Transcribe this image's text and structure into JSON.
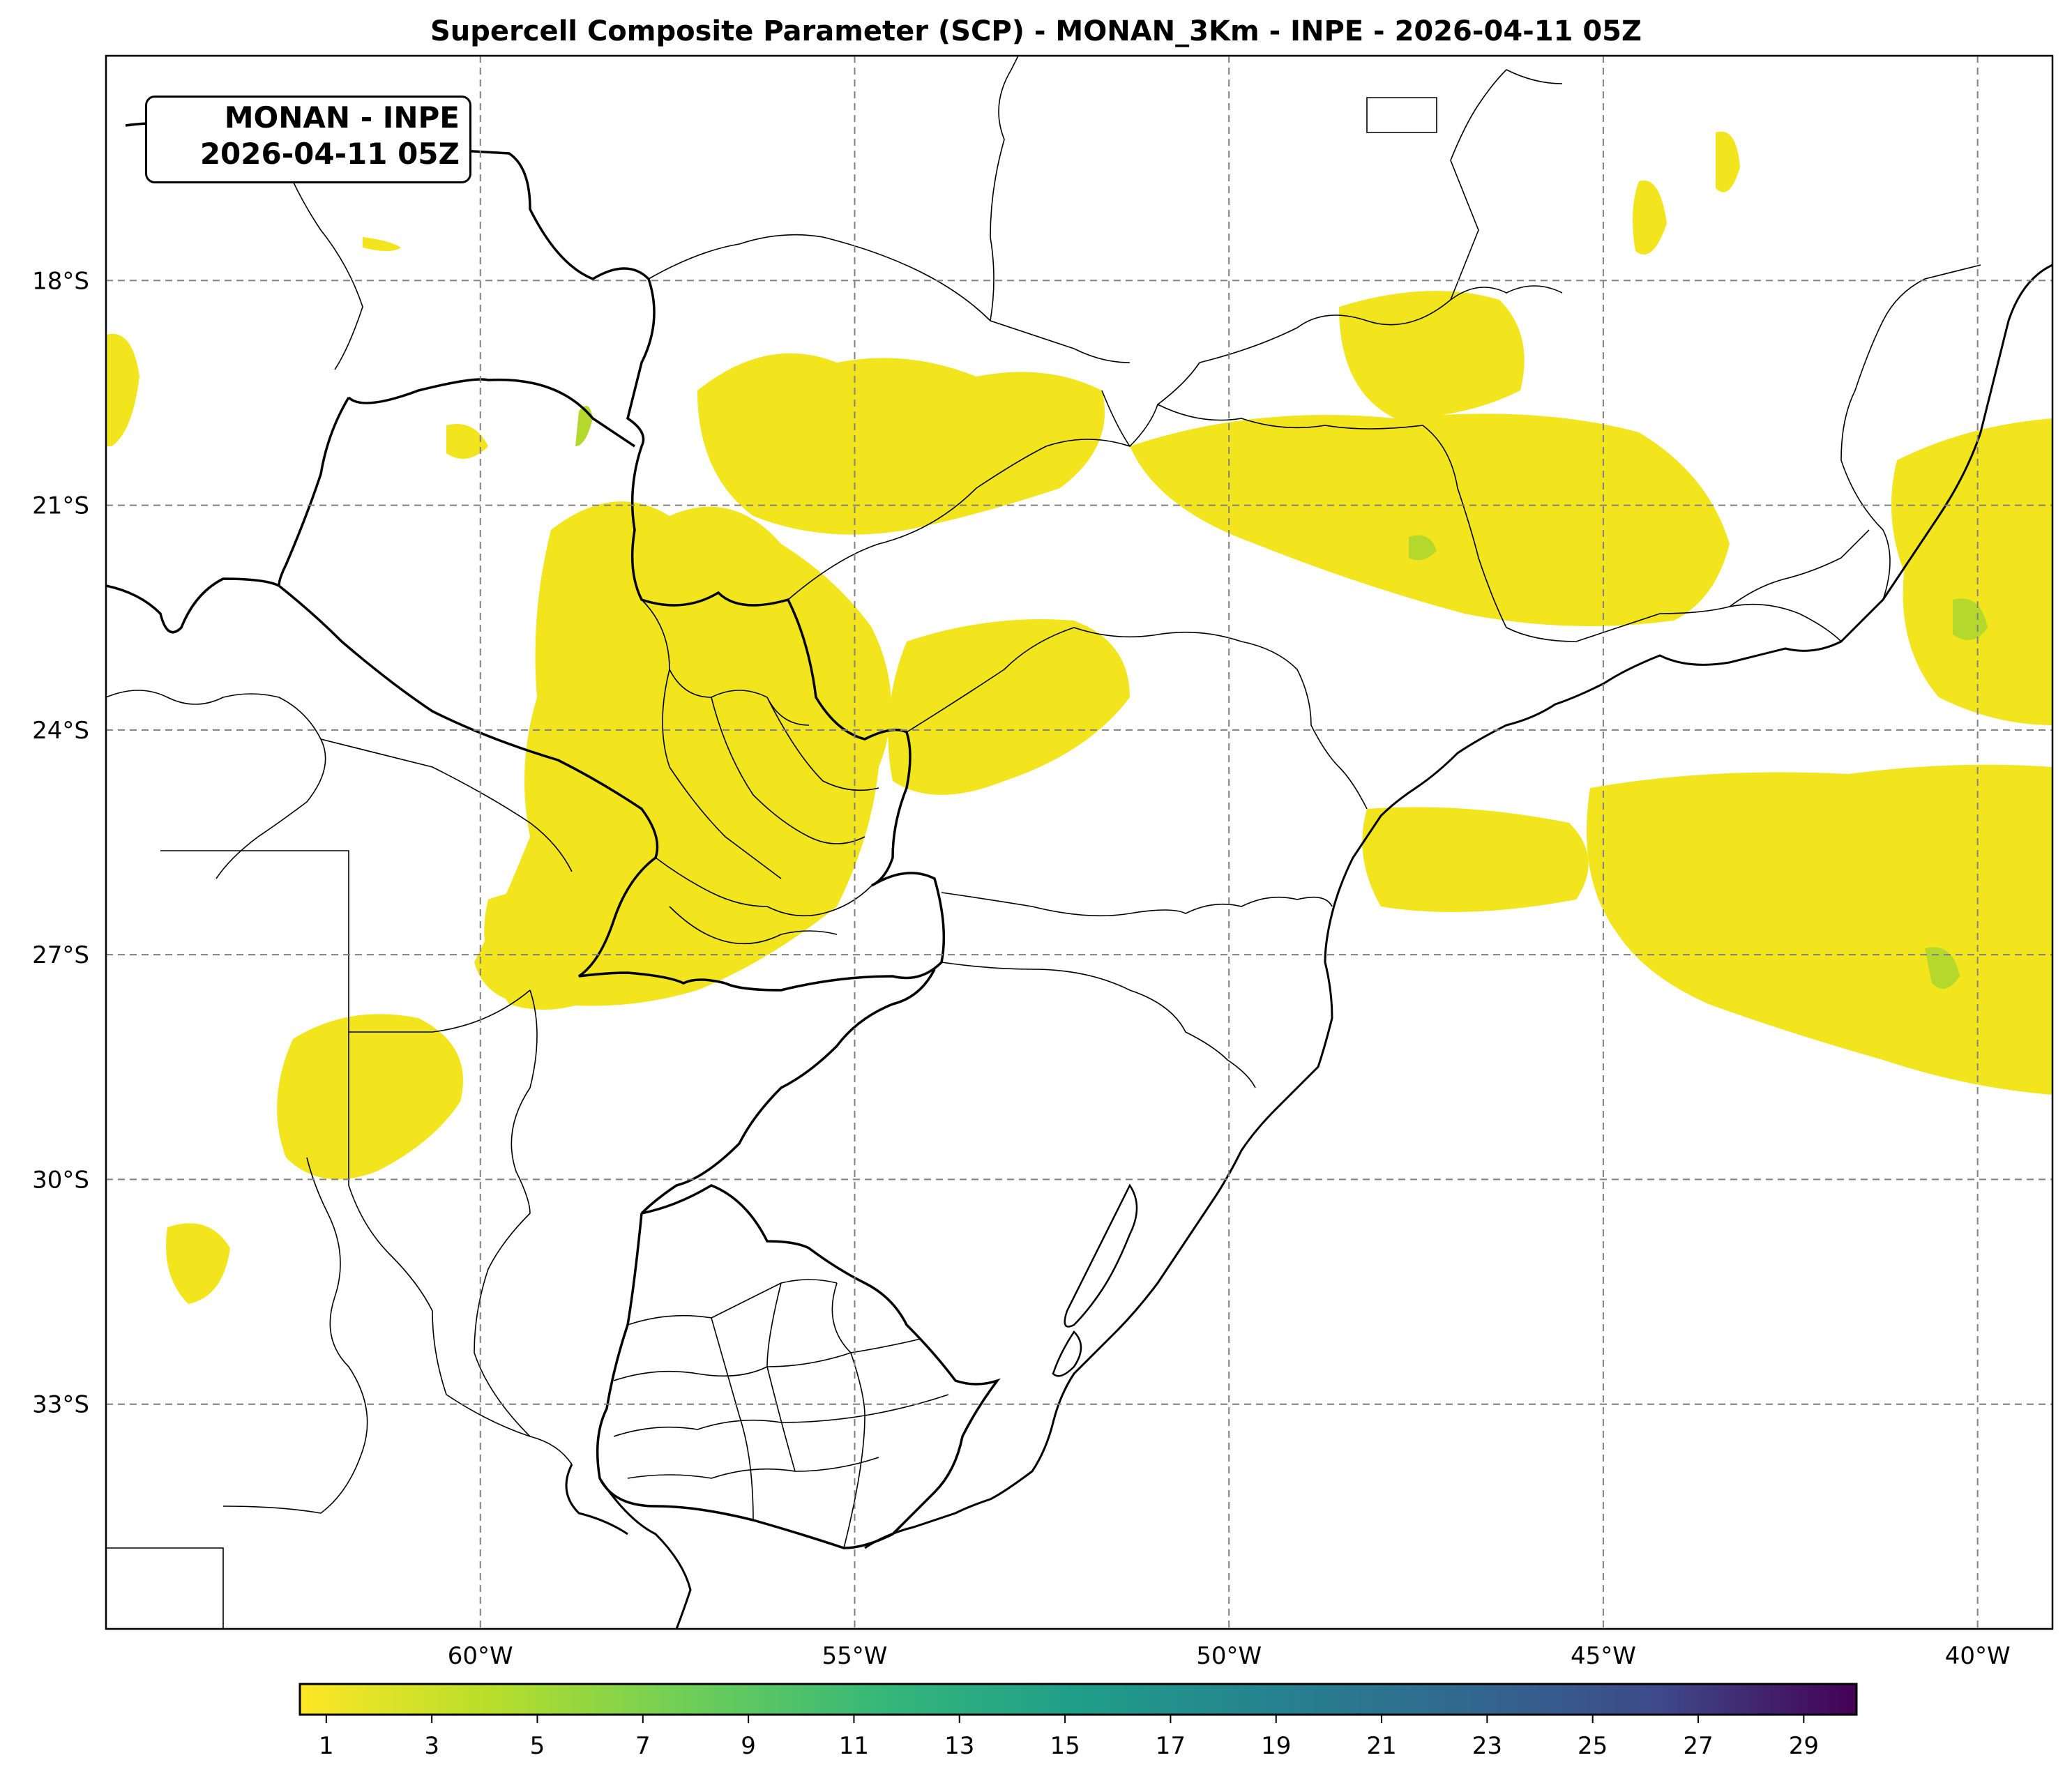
{
  "title": "Supercell Composite Parameter (SCP) - MONAN_3Km - INPE - 2026-04-11 05Z",
  "infobox": {
    "line1": "MONAN - INPE",
    "line2": "2026-04-11 05Z"
  },
  "map": {
    "projection": "plate-carree",
    "lon_range": [
      -65.0,
      -39.0
    ],
    "lat_range": [
      -36.0,
      -15.0
    ],
    "gridlines": "dashed gray",
    "lon_ticks": [
      {
        "value": -60,
        "label": "60°W"
      },
      {
        "value": -55,
        "label": "55°W"
      },
      {
        "value": -50,
        "label": "50°W"
      },
      {
        "value": -45,
        "label": "45°W"
      },
      {
        "value": -40,
        "label": "40°W"
      }
    ],
    "lat_ticks": [
      {
        "value": -18,
        "label": "18°S"
      },
      {
        "value": -21,
        "label": "21°S"
      },
      {
        "value": -24,
        "label": "24°S"
      },
      {
        "value": -27,
        "label": "27°S"
      },
      {
        "value": -30,
        "label": "30°S"
      },
      {
        "value": -33,
        "label": "33°S"
      }
    ],
    "field_color": "#f2e51e",
    "field_color_high": "#b5d82c",
    "line_color": "#000000",
    "grid_color": "#808080"
  },
  "colorbar": {
    "colormap": "viridis_r",
    "range": [
      0.5,
      30
    ],
    "tick_values": [
      1,
      3,
      5,
      7,
      9,
      11,
      13,
      15,
      17,
      19,
      21,
      23,
      25,
      27,
      29
    ],
    "tick_labels": [
      "1",
      "3",
      "5",
      "7",
      "9",
      "11",
      "13",
      "15",
      "17",
      "19",
      "21",
      "23",
      "25",
      "27",
      "29"
    ]
  }
}
